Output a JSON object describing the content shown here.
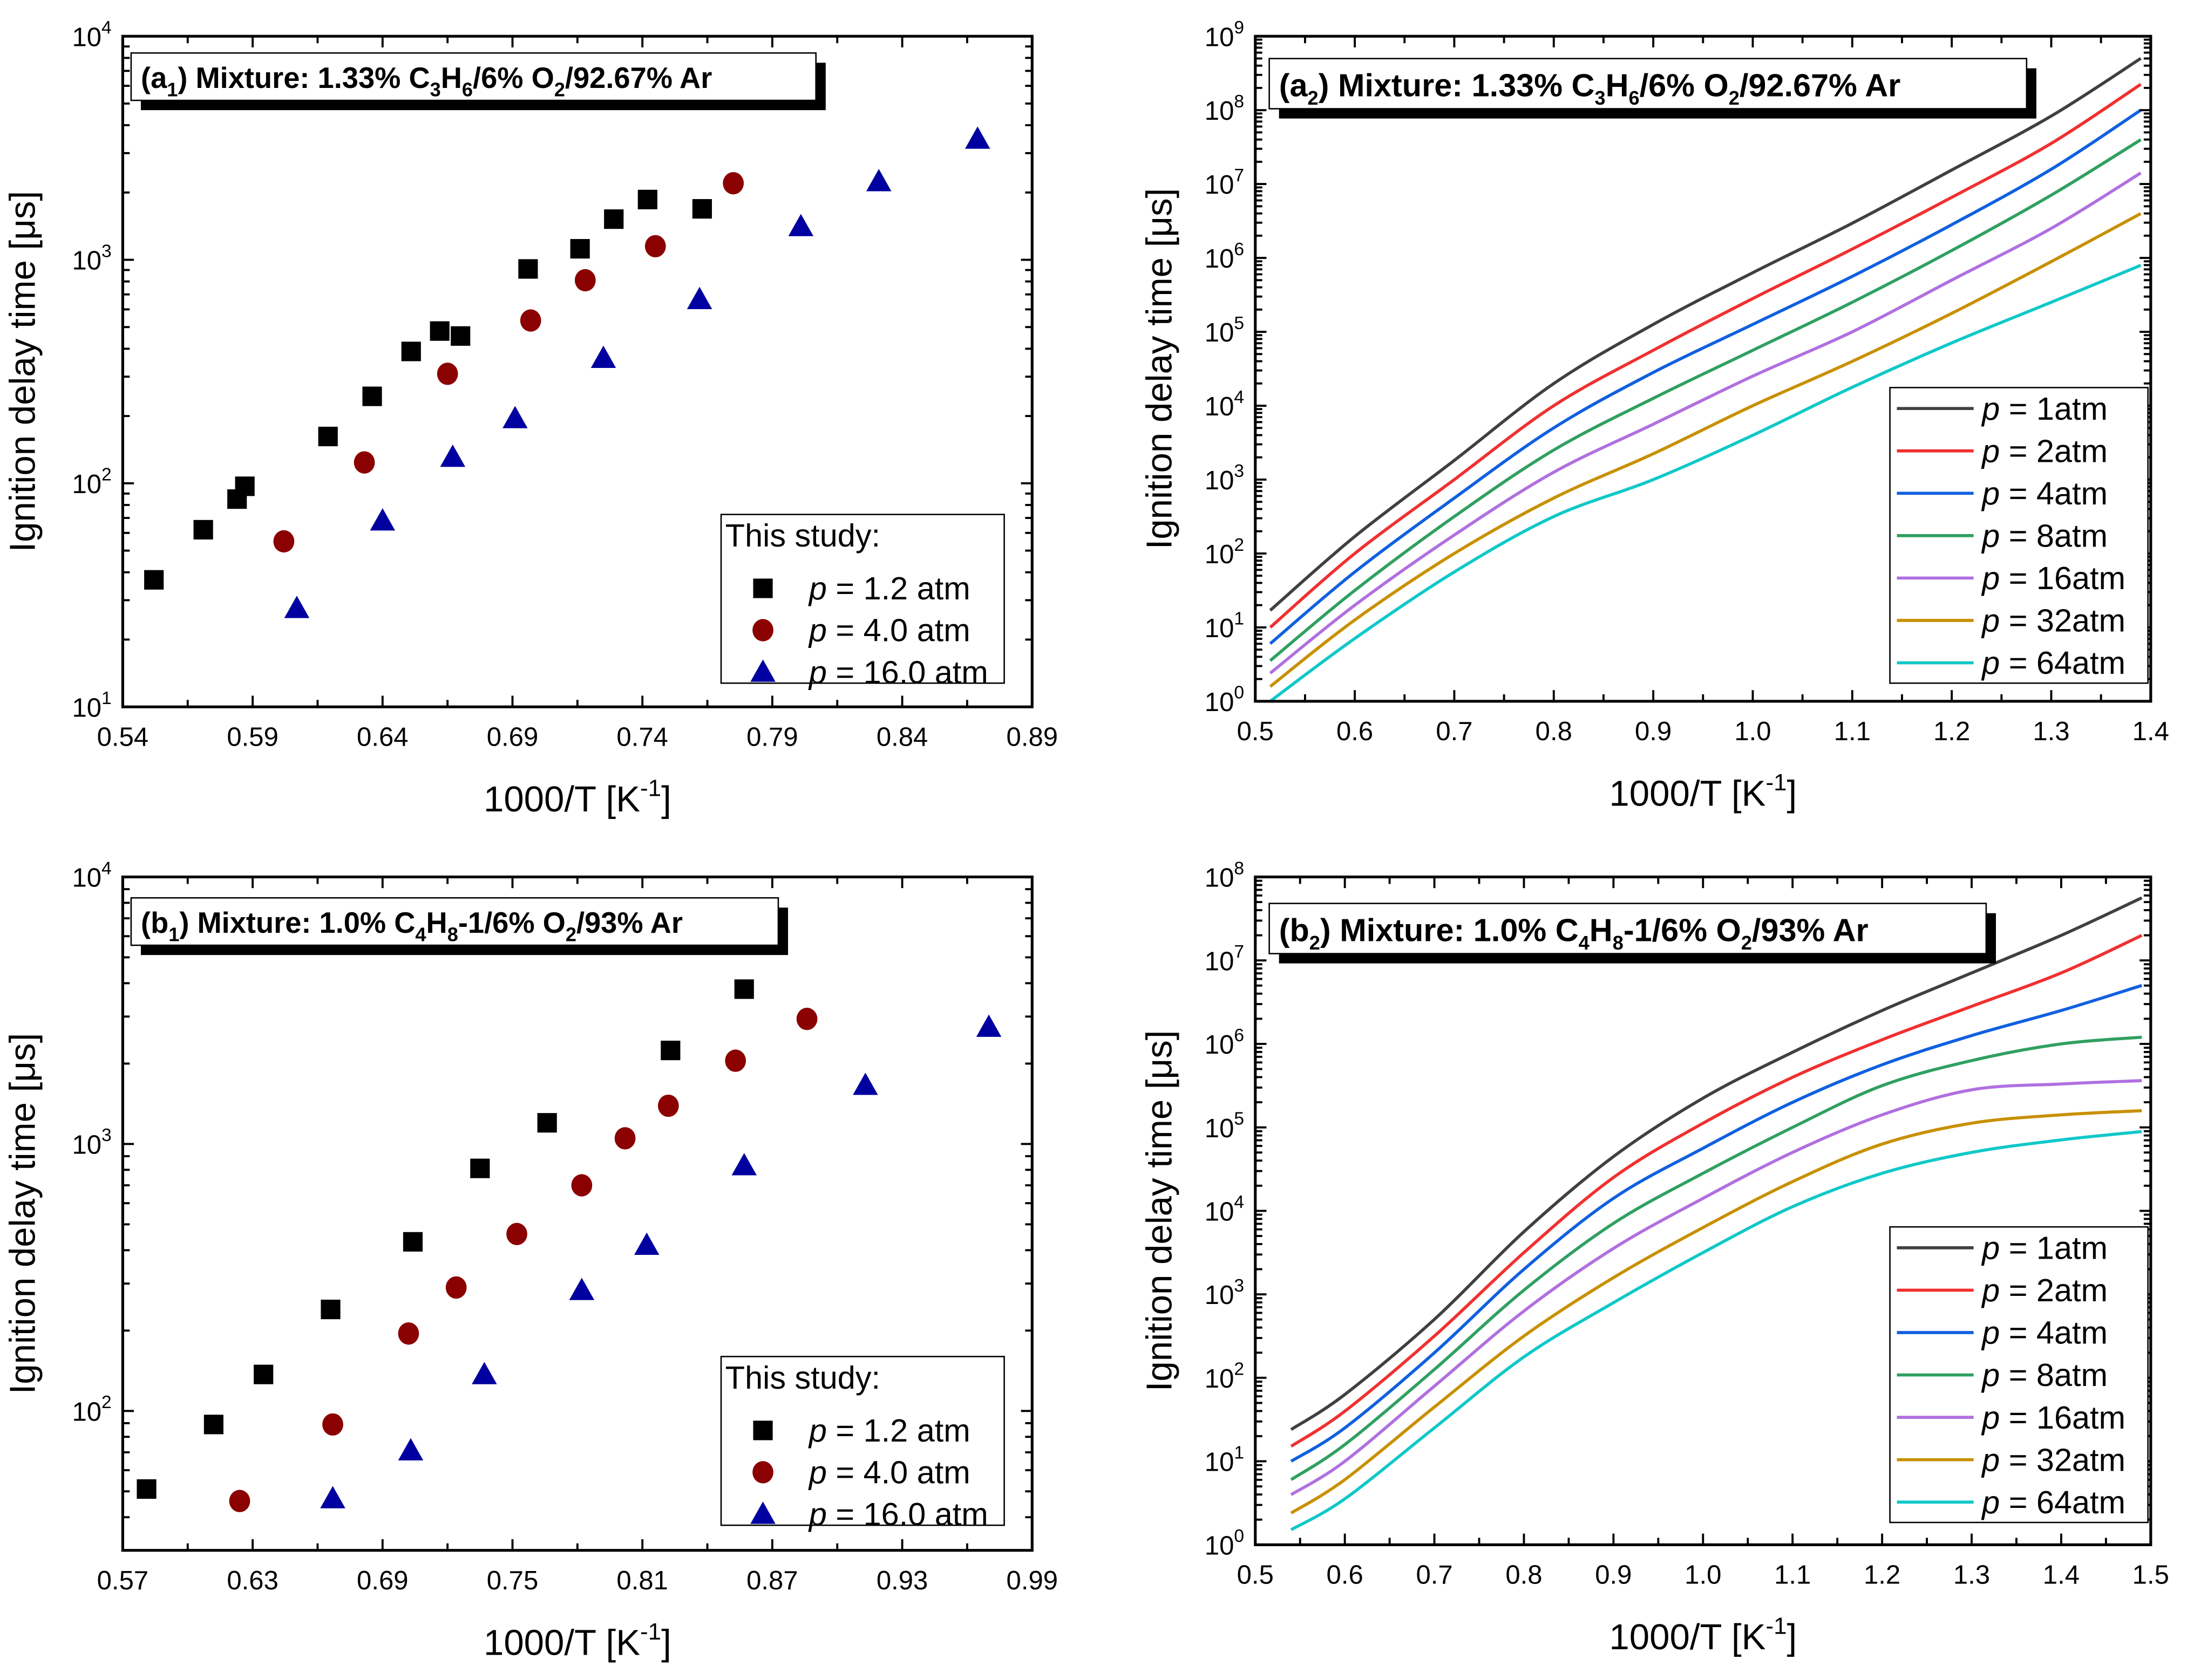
{
  "chart_data": [
    {
      "id": "a1",
      "type": "scatter",
      "title_parts": [
        {
          "t": "(a"
        },
        {
          "t": "1",
          "sub": true
        },
        {
          "t": ") Mixture: 1.33% C"
        },
        {
          "t": "3",
          "sub": true
        },
        {
          "t": "H"
        },
        {
          "t": "6",
          "sub": true
        },
        {
          "t": "/6% O"
        },
        {
          "t": "2",
          "sub": true
        },
        {
          "t": "/92.67% Ar"
        }
      ],
      "xlabel_parts": [
        {
          "t": "1000/T [K"
        },
        {
          "t": "-1",
          "sup": true
        },
        {
          "t": "]"
        }
      ],
      "ylabel": "Ignition delay time [μs]",
      "xlim": [
        0.54,
        0.89
      ],
      "xticks": [
        0.54,
        0.59,
        0.64,
        0.69,
        0.74,
        0.79,
        0.84,
        0.89
      ],
      "xtick_labels": [
        "0.54",
        "0.59",
        "0.64",
        "0.69",
        "0.74",
        "0.79",
        "0.84",
        "0.89"
      ],
      "xminor": 0.025,
      "yscale": "log",
      "ylim_log10": [
        1,
        4
      ],
      "ytick_labels": [
        "10^1",
        "10^2",
        "10^3",
        "10^4"
      ],
      "legend": {
        "title": "This study:",
        "placement": "bottom-right"
      },
      "series": [
        {
          "name": "p = 1.2 atm",
          "p_label": "p",
          "rest": " = 1.2 atm",
          "marker": "square",
          "color": "#000000",
          "x": [
            0.552,
            0.571,
            0.584,
            0.587,
            0.619,
            0.636,
            0.651,
            0.662,
            0.67,
            0.696,
            0.716,
            0.729,
            0.742,
            0.763
          ],
          "y": [
            37,
            62,
            85,
            97,
            162,
            245,
            389,
            480,
            456,
            910,
            1120,
            1520,
            1860,
            1690
          ]
        },
        {
          "name": "p = 4.0 atm",
          "p_label": "p",
          "rest": " = 4.0 atm",
          "marker": "circle",
          "color": "#8b0000",
          "x": [
            0.602,
            0.633,
            0.665,
            0.697,
            0.718,
            0.745,
            0.775
          ],
          "y": [
            55,
            124,
            309,
            535,
            810,
            1150,
            2200
          ]
        },
        {
          "name": "p = 16.0 atm",
          "p_label": "p",
          "rest": " = 16.0 atm",
          "marker": "triangle",
          "color": "#0000a0",
          "x": [
            0.607,
            0.64,
            0.667,
            0.691,
            0.725,
            0.762,
            0.801,
            0.831,
            0.869
          ],
          "y": [
            27.6,
            68,
            131,
            195,
            363,
            665,
            1410,
            2240,
            3470
          ]
        }
      ]
    },
    {
      "id": "a2",
      "type": "line",
      "title_parts": [
        {
          "t": "(a"
        },
        {
          "t": "2",
          "sub": true
        },
        {
          "t": ") Mixture: 1.33% C"
        },
        {
          "t": "3",
          "sub": true
        },
        {
          "t": "H"
        },
        {
          "t": "6",
          "sub": true
        },
        {
          "t": "/6% O"
        },
        {
          "t": "2",
          "sub": true
        },
        {
          "t": "/92.67% Ar"
        }
      ],
      "xlabel_parts": [
        {
          "t": "1000/T [K"
        },
        {
          "t": "-1",
          "sup": true
        },
        {
          "t": "]"
        }
      ],
      "ylabel": "Ignition delay time [μs]",
      "xlim": [
        0.5,
        1.4
      ],
      "xticks": [
        0.5,
        0.6,
        0.7,
        0.8,
        0.9,
        1.0,
        1.1,
        1.2,
        1.3,
        1.4
      ],
      "xtick_labels": [
        "0.5",
        "0.6",
        "0.7",
        "0.8",
        "0.9",
        "1.0",
        "1.1",
        "1.2",
        "1.3",
        "1.4"
      ],
      "xminor": 0.05,
      "yscale": "log",
      "ylim_log10": [
        0,
        9
      ],
      "ytick_labels": [
        "10^0",
        "10^1",
        "10^2",
        "10^3",
        "10^4",
        "10^5",
        "10^6",
        "10^7",
        "10^8",
        "10^9"
      ],
      "legend": {
        "placement": "bottom-right"
      },
      "x": [
        0.515,
        0.6,
        0.7,
        0.8,
        0.9,
        1.0,
        1.1,
        1.2,
        1.3,
        1.39
      ],
      "series": [
        {
          "name": "p = 1atm",
          "p_label": "p",
          "rest": " = 1atm",
          "color": "#404040",
          "log10_y": [
            1.23,
            2.23,
            3.26,
            4.3,
            5.1,
            5.8,
            6.47,
            7.19,
            7.92,
            8.7
          ]
        },
        {
          "name": "p = 2atm",
          "p_label": "p",
          "rest": " = 2atm",
          "color": "#f03030",
          "log10_y": [
            1.0,
            2.0,
            3.0,
            4.0,
            4.75,
            5.45,
            6.12,
            6.82,
            7.55,
            8.35
          ]
        },
        {
          "name": "p = 4atm",
          "p_label": "p",
          "rest": " = 4atm",
          "color": "#1060e0",
          "log10_y": [
            0.78,
            1.75,
            2.75,
            3.7,
            4.45,
            5.1,
            5.75,
            6.45,
            7.2,
            8.0
          ]
        },
        {
          "name": "p = 8atm",
          "p_label": "p",
          "rest": " = 8atm",
          "color": "#30a060",
          "log10_y": [
            0.55,
            1.5,
            2.5,
            3.4,
            4.1,
            4.75,
            5.4,
            6.1,
            6.85,
            7.6
          ]
        },
        {
          "name": "p = 16atm",
          "p_label": "p",
          "rest": " = 16atm",
          "color": "#b070e0",
          "log10_y": [
            0.38,
            1.3,
            2.25,
            3.1,
            3.75,
            4.4,
            5.0,
            5.7,
            6.4,
            7.15
          ]
        },
        {
          "name": "p = 32atm",
          "p_label": "p",
          "rest": " = 32atm",
          "color": "#c89000",
          "log10_y": [
            0.2,
            1.1,
            2.0,
            2.75,
            3.35,
            4.0,
            4.6,
            5.25,
            5.95,
            6.6
          ]
        },
        {
          "name": "p = 64atm",
          "p_label": "p",
          "rest": " = 64atm",
          "color": "#10c8c8",
          "log10_y": [
            0.0,
            0.85,
            1.75,
            2.5,
            3.0,
            3.6,
            4.25,
            4.85,
            5.4,
            5.9
          ]
        }
      ]
    },
    {
      "id": "b1",
      "type": "scatter",
      "title_parts": [
        {
          "t": "(b"
        },
        {
          "t": "1",
          "sub": true
        },
        {
          "t": ") Mixture: 1.0% C"
        },
        {
          "t": "4",
          "sub": true
        },
        {
          "t": "H"
        },
        {
          "t": "8",
          "sub": true
        },
        {
          "t": "-1/6% O"
        },
        {
          "t": "2",
          "sub": true
        },
        {
          "t": "/93% Ar"
        }
      ],
      "xlabel_parts": [
        {
          "t": "1000/T [K"
        },
        {
          "t": "-1",
          "sup": true
        },
        {
          "t": "]"
        }
      ],
      "ylabel": "Ignition delay time [μs]",
      "xlim": [
        0.57,
        0.99
      ],
      "xticks": [
        0.57,
        0.63,
        0.69,
        0.75,
        0.81,
        0.87,
        0.93,
        0.99
      ],
      "xtick_labels": [
        "0.57",
        "0.63",
        "0.69",
        "0.75",
        "0.81",
        "0.87",
        "0.93",
        "0.99"
      ],
      "xminor": 0.03,
      "yscale": "log",
      "ylim_log10": [
        1.478,
        4
      ],
      "ytick_labels": [
        "10^2",
        "10^3",
        "10^4"
      ],
      "legend": {
        "title": "This study:",
        "placement": "bottom-right"
      },
      "series": [
        {
          "name": "p = 1.2 atm",
          "p_label": "p",
          "rest": " = 1.2 atm",
          "marker": "square",
          "color": "#000000",
          "x": [
            0.581,
            0.612,
            0.635,
            0.666,
            0.704,
            0.735,
            0.766,
            0.823,
            0.857
          ],
          "y": [
            51,
            89,
            137,
            240,
            430,
            810,
            1200,
            2240,
            3800
          ]
        },
        {
          "name": "p = 4.0 atm",
          "p_label": "p",
          "rest": " = 4.0 atm",
          "marker": "circle",
          "color": "#8b0000",
          "x": [
            0.624,
            0.667,
            0.702,
            0.724,
            0.752,
            0.782,
            0.802,
            0.822,
            0.853,
            0.886
          ],
          "y": [
            46,
            89,
            195,
            290,
            460,
            700,
            1050,
            1390,
            2050,
            2940
          ]
        },
        {
          "name": "p = 16.0 atm",
          "p_label": "p",
          "rest": " = 16.0 atm",
          "marker": "triangle",
          "color": "#0000a0",
          "x": [
            0.667,
            0.703,
            0.737,
            0.782,
            0.812,
            0.857,
            0.913,
            0.97
          ],
          "y": [
            47,
            71,
            137,
            283,
            418,
            830,
            1660,
            2740
          ]
        }
      ]
    },
    {
      "id": "b2",
      "type": "line",
      "title_parts": [
        {
          "t": "(b"
        },
        {
          "t": "2",
          "sub": true
        },
        {
          "t": ") Mixture: 1.0% C"
        },
        {
          "t": "4",
          "sub": true
        },
        {
          "t": "H"
        },
        {
          "t": "8",
          "sub": true
        },
        {
          "t": "-1/6% O"
        },
        {
          "t": "2",
          "sub": true
        },
        {
          "t": "/93% Ar"
        }
      ],
      "xlabel_parts": [
        {
          "t": "1000/T [K"
        },
        {
          "t": "-1",
          "sup": true
        },
        {
          "t": "]"
        }
      ],
      "ylabel": "Ignition delay time [μs]",
      "xlim": [
        0.5,
        1.5
      ],
      "xticks": [
        0.5,
        0.6,
        0.7,
        0.8,
        0.9,
        1.0,
        1.1,
        1.2,
        1.3,
        1.4,
        1.5
      ],
      "xtick_labels": [
        "0.5",
        "0.6",
        "0.7",
        "0.8",
        "0.9",
        "1.0",
        "1.1",
        "1.2",
        "1.3",
        "1.4",
        "1.5"
      ],
      "xminor": 0.05,
      "yscale": "log",
      "ylim_log10": [
        0,
        8
      ],
      "ytick_labels": [
        "10^0",
        "10^1",
        "10^2",
        "10^3",
        "10^4",
        "10^5",
        "10^6",
        "10^7",
        "10^8"
      ],
      "legend": {
        "placement": "bottom-right"
      },
      "x": [
        0.54,
        0.6,
        0.7,
        0.8,
        0.9,
        1.0,
        1.1,
        1.2,
        1.3,
        1.4,
        1.49
      ],
      "series": [
        {
          "name": "p = 1atm",
          "p_label": "p",
          "rest": " = 1atm",
          "color": "#404040",
          "log10_y": [
            1.38,
            1.8,
            2.7,
            3.75,
            4.65,
            5.35,
            5.9,
            6.4,
            6.85,
            7.3,
            7.75
          ]
        },
        {
          "name": "p = 2atm",
          "p_label": "p",
          "rest": " = 2atm",
          "color": "#f03030",
          "log10_y": [
            1.18,
            1.6,
            2.5,
            3.5,
            4.4,
            5.05,
            5.6,
            6.05,
            6.45,
            6.85,
            7.3
          ]
        },
        {
          "name": "p = 4atm",
          "p_label": "p",
          "rest": " = 4atm",
          "color": "#1060e0",
          "log10_y": [
            1.0,
            1.4,
            2.3,
            3.3,
            4.15,
            4.75,
            5.3,
            5.75,
            6.1,
            6.4,
            6.7
          ]
        },
        {
          "name": "p = 8atm",
          "p_label": "p",
          "rest": " = 8atm",
          "color": "#30a060",
          "log10_y": [
            0.78,
            1.2,
            2.1,
            3.05,
            3.85,
            4.45,
            5.0,
            5.5,
            5.8,
            6.0,
            6.08
          ]
        },
        {
          "name": "p = 16atm",
          "p_label": "p",
          "rest": " = 16atm",
          "color": "#b070e0",
          "log10_y": [
            0.6,
            1.0,
            1.9,
            2.8,
            3.55,
            4.15,
            4.7,
            5.15,
            5.45,
            5.52,
            5.56
          ]
        },
        {
          "name": "p = 32atm",
          "p_label": "p",
          "rest": " = 32atm",
          "color": "#c89000",
          "log10_y": [
            0.38,
            0.78,
            1.65,
            2.5,
            3.2,
            3.8,
            4.35,
            4.8,
            5.05,
            5.15,
            5.2
          ]
        },
        {
          "name": "p = 64atm",
          "p_label": "p",
          "rest": " = 64atm",
          "color": "#10c8c8",
          "log10_y": [
            0.18,
            0.55,
            1.4,
            2.25,
            2.9,
            3.5,
            4.05,
            4.45,
            4.7,
            4.85,
            4.95
          ]
        }
      ]
    }
  ]
}
